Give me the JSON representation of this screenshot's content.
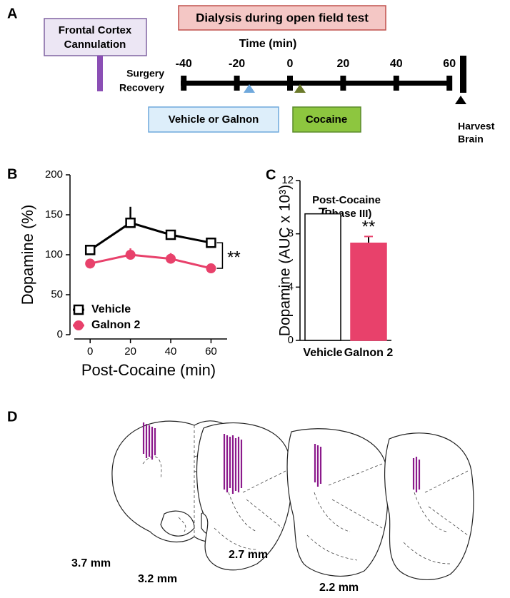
{
  "panel_labels": [
    "A",
    "B",
    "C",
    "D"
  ],
  "timeline": {
    "title": "Dialysis during open field test",
    "cannulation": [
      "Frontal Cortex",
      "Cannulation"
    ],
    "axis_label": "Time (min)",
    "ticks": [
      -40,
      -20,
      0,
      20,
      40,
      60
    ],
    "recovery": [
      "Surgery",
      "Recovery"
    ],
    "treatment": "Vehicle or Galnon",
    "drug": "Cocaine",
    "harvest": [
      "Harvest",
      "Brain"
    ]
  },
  "chart_data": [
    {
      "type": "line",
      "x": [
        0,
        20,
        40,
        60
      ],
      "series": [
        {
          "name": "Vehicle",
          "color": "#000000",
          "marker": "square",
          "values": [
            106,
            140,
            125,
            115
          ],
          "errors": [
            5,
            20,
            5,
            6
          ]
        },
        {
          "name": "Galnon 2",
          "color": "#e8416b",
          "marker": "circle",
          "values": [
            89,
            100,
            95,
            83
          ],
          "errors": [
            4,
            8,
            7,
            6
          ]
        }
      ],
      "xlim": [
        -10,
        68
      ],
      "ylim": [
        0,
        200
      ],
      "xticks": [
        0,
        20,
        40,
        60
      ],
      "yticks": [
        0,
        50,
        100,
        150,
        200
      ],
      "x_label": "Post-Cocaine (min)",
      "y_label": "Dopamine (%)",
      "legend": "lower left",
      "annotation": "**"
    },
    {
      "type": "bar",
      "title": [
        "Post-Cocaine",
        "(Phase III)"
      ],
      "categories": [
        "Vehicle",
        "Galnon 2"
      ],
      "values": [
        9.5,
        7.3
      ],
      "errors": [
        0.4,
        0.5
      ],
      "colors": [
        "#ffffff",
        "#e8416b"
      ],
      "label_colors": [
        "#000000",
        "#e8416b"
      ],
      "ylim": [
        0,
        12
      ],
      "yticks": [
        0,
        4,
        8,
        12
      ],
      "y_label": "Dopamine (AUC x 10³)",
      "annotation": "**"
    }
  ],
  "sections": {
    "labels": [
      "3.7 mm",
      "3.2 mm",
      "2.7 mm",
      "2.2 mm"
    ]
  }
}
